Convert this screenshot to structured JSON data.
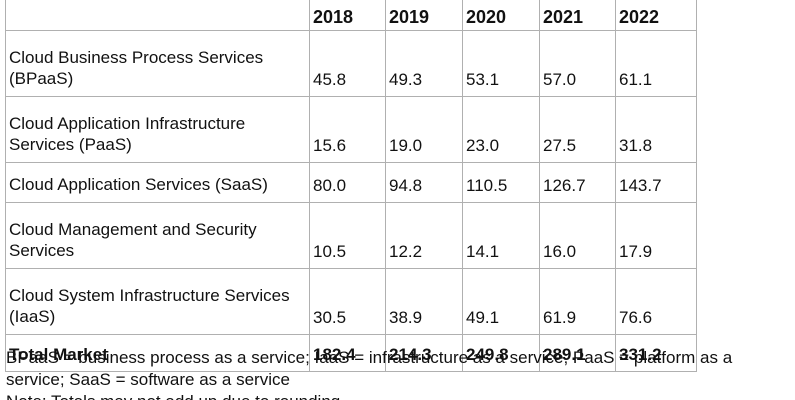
{
  "table": {
    "corner": "",
    "years": [
      "2018",
      "2019",
      "2020",
      "2021",
      "2022"
    ],
    "rows": [
      {
        "segment": "Cloud Business Process Services (BPaaS)",
        "values": [
          "45.8",
          "49.3",
          "53.1",
          "57.0",
          "61.1"
        ]
      },
      {
        "segment": "Cloud Application Infrastructure Services (PaaS)",
        "values": [
          "15.6",
          "19.0",
          "23.0",
          "27.5",
          "31.8"
        ]
      },
      {
        "segment": "Cloud Application Services (SaaS)",
        "values": [
          "80.0",
          "94.8",
          "110.5",
          "126.7",
          "143.7"
        ]
      },
      {
        "segment": "Cloud Management and Security Services",
        "values": [
          "10.5",
          "12.2",
          "14.1",
          "16.0",
          "17.9"
        ]
      },
      {
        "segment": "Cloud System Infrastructure Services (IaaS)",
        "values": [
          "30.5",
          "38.9",
          "49.1",
          "61.9",
          "76.6"
        ]
      }
    ],
    "total": {
      "segment": "Total Market",
      "values": [
        "182.4",
        "214.3",
        "249.8",
        "289.1",
        "331.2"
      ]
    }
  },
  "notes": {
    "abbreviations": "BPaaS = business process as a service; IaaS = infrastructure as a service; PaaS = platform as a service; SaaS = software as a service",
    "rounding": "Note: Totals may not add up due to rounding."
  }
}
